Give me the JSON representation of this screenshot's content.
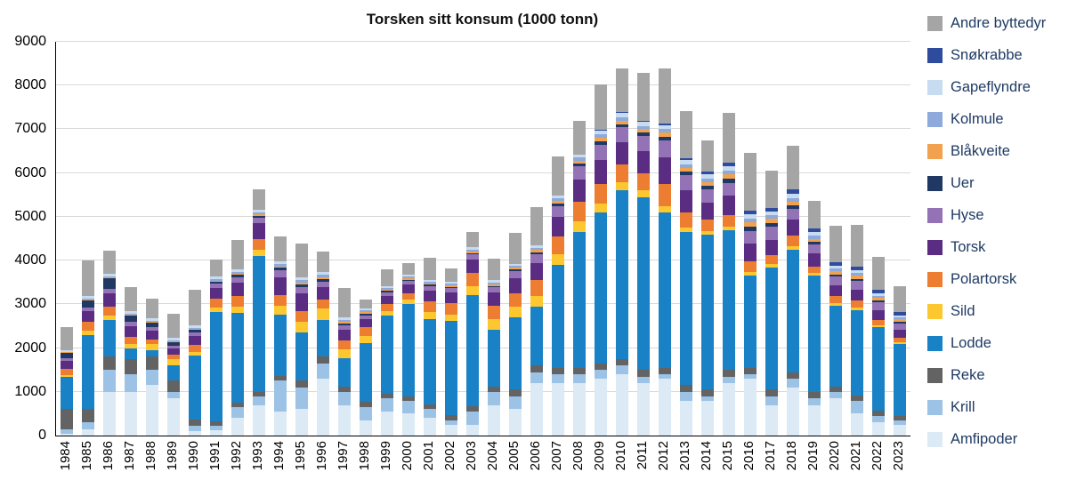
{
  "title": "Torsken sitt konsum (1000 tonn)",
  "chart_data": {
    "type": "bar",
    "stacked": true,
    "title": "Torsken sitt konsum (1000 tonn)",
    "xlabel": "",
    "ylabel": "",
    "ylim": [
      0,
      9000
    ],
    "ytick_interval": 1000,
    "grid": true,
    "legend_position": "right",
    "legend_order": "top-of-stack-first",
    "categories": [
      "1984",
      "1985",
      "1986",
      "1987",
      "1988",
      "1989",
      "1990",
      "1991",
      "1992",
      "1993",
      "1994",
      "1995",
      "1996",
      "1997",
      "1998",
      "1999",
      "2000",
      "2001",
      "2002",
      "2003",
      "2004",
      "2005",
      "2006",
      "2007",
      "2008",
      "2009",
      "2010",
      "2011",
      "2012",
      "2013",
      "2014",
      "2015",
      "2016",
      "2017",
      "2018",
      "2019",
      "2020",
      "2021",
      "2022",
      "2023"
    ],
    "series": [
      {
        "name": "Amfipoder",
        "color": "#dbeaf5",
        "values": [
          50,
          150,
          1000,
          1000,
          1150,
          850,
          100,
          120,
          400,
          700,
          550,
          600,
          1300,
          700,
          350,
          550,
          500,
          400,
          250,
          250,
          700,
          600,
          1200,
          1200,
          1200,
          1300,
          1400,
          1200,
          1300,
          800,
          800,
          1200,
          1300,
          700,
          1100,
          700,
          850,
          500,
          300,
          250
        ]
      },
      {
        "name": "Krill",
        "color": "#9cc2e5",
        "values": [
          100,
          150,
          500,
          400,
          350,
          150,
          120,
          100,
          250,
          200,
          700,
          500,
          350,
          300,
          300,
          300,
          300,
          200,
          100,
          300,
          300,
          300,
          250,
          200,
          200,
          200,
          200,
          150,
          100,
          200,
          100,
          150,
          100,
          200,
          200,
          150,
          150,
          300,
          150,
          100
        ]
      },
      {
        "name": "Reke",
        "color": "#636363",
        "values": [
          450,
          300,
          300,
          350,
          300,
          250,
          150,
          100,
          100,
          100,
          120,
          150,
          150,
          120,
          120,
          100,
          100,
          120,
          120,
          120,
          120,
          150,
          150,
          150,
          150,
          150,
          150,
          150,
          150,
          150,
          150,
          150,
          150,
          150,
          150,
          150,
          120,
          120,
          120,
          100
        ]
      },
      {
        "name": "Lodde",
        "color": "#1981c5",
        "values": [
          750,
          1700,
          850,
          250,
          150,
          350,
          1450,
          2500,
          2050,
          3100,
          1400,
          1100,
          850,
          650,
          1350,
          1800,
          2100,
          1950,
          2150,
          2550,
          1300,
          1650,
          1350,
          2350,
          3100,
          3450,
          3850,
          3950,
          3550,
          3500,
          3550,
          3200,
          2100,
          2800,
          2800,
          2650,
          1850,
          1950,
          1900,
          1650
        ]
      },
      {
        "name": "Sild",
        "color": "#fdc82f",
        "values": [
          30,
          100,
          100,
          100,
          150,
          150,
          100,
          100,
          150,
          150,
          200,
          250,
          250,
          200,
          150,
          100,
          100,
          150,
          150,
          200,
          250,
          250,
          250,
          250,
          250,
          200,
          200,
          150,
          150,
          100,
          80,
          80,
          80,
          80,
          80,
          60,
          60,
          60,
          50,
          40
        ]
      },
      {
        "name": "Polartorsk",
        "color": "#ed7d31",
        "values": [
          150,
          200,
          200,
          150,
          100,
          100,
          150,
          200,
          250,
          250,
          250,
          250,
          200,
          200,
          200,
          150,
          150,
          250,
          250,
          300,
          300,
          300,
          350,
          400,
          450,
          450,
          400,
          400,
          500,
          350,
          250,
          250,
          250,
          200,
          250,
          150,
          150,
          150,
          120,
          100
        ]
      },
      {
        "name": "Torsk",
        "color": "#5b2d82",
        "values": [
          180,
          250,
          300,
          250,
          200,
          150,
          200,
          250,
          300,
          350,
          400,
          400,
          300,
          250,
          200,
          200,
          200,
          250,
          250,
          300,
          300,
          350,
          400,
          450,
          500,
          550,
          500,
          500,
          600,
          500,
          400,
          450,
          400,
          350,
          350,
          300,
          250,
          250,
          220,
          180
        ]
      },
      {
        "name": "Hyse",
        "color": "#9373b5",
        "values": [
          60,
          80,
          100,
          100,
          80,
          60,
          80,
          100,
          120,
          120,
          150,
          150,
          120,
          100,
          80,
          80,
          80,
          100,
          100,
          120,
          120,
          150,
          200,
          250,
          300,
          350,
          350,
          350,
          400,
          350,
          300,
          300,
          300,
          300,
          250,
          200,
          200,
          200,
          180,
          150
        ]
      },
      {
        "name": "Uer",
        "color": "#1f3864",
        "values": [
          120,
          150,
          250,
          150,
          100,
          80,
          60,
          50,
          50,
          50,
          60,
          60,
          50,
          40,
          40,
          30,
          30,
          30,
          30,
          30,
          30,
          40,
          40,
          50,
          60,
          70,
          70,
          70,
          80,
          80,
          80,
          90,
          90,
          80,
          80,
          60,
          50,
          50,
          40,
          40
        ]
      },
      {
        "name": "Blåkveite",
        "color": "#f2a24e",
        "values": [
          10,
          20,
          20,
          20,
          20,
          20,
          20,
          20,
          30,
          30,
          40,
          40,
          40,
          40,
          30,
          30,
          30,
          30,
          30,
          40,
          40,
          40,
          50,
          60,
          70,
          80,
          80,
          80,
          90,
          90,
          90,
          100,
          100,
          90,
          90,
          80,
          70,
          70,
          60,
          50
        ]
      },
      {
        "name": "Kolmule",
        "color": "#8ea9db",
        "values": [
          10,
          20,
          20,
          20,
          20,
          20,
          30,
          40,
          40,
          50,
          50,
          60,
          60,
          50,
          40,
          40,
          40,
          40,
          40,
          40,
          40,
          50,
          50,
          60,
          70,
          80,
          80,
          80,
          80,
          80,
          80,
          90,
          90,
          80,
          80,
          70,
          60,
          60,
          50,
          40
        ]
      },
      {
        "name": "Gapeflyndre",
        "color": "#c7dcf0",
        "values": [
          40,
          60,
          60,
          60,
          60,
          50,
          50,
          50,
          60,
          60,
          60,
          60,
          60,
          50,
          40,
          40,
          40,
          40,
          40,
          50,
          50,
          50,
          60,
          70,
          80,
          90,
          90,
          90,
          90,
          90,
          90,
          100,
          100,
          90,
          90,
          80,
          70,
          70,
          60,
          50
        ]
      },
      {
        "name": "Snøkrabbe",
        "color": "#2e4b9e",
        "values": [
          0,
          0,
          0,
          0,
          0,
          0,
          0,
          0,
          0,
          0,
          0,
          0,
          0,
          0,
          0,
          0,
          0,
          0,
          0,
          0,
          0,
          0,
          0,
          0,
          0,
          10,
          20,
          30,
          40,
          50,
          60,
          70,
          80,
          80,
          100,
          90,
          80,
          90,
          80,
          70
        ]
      },
      {
        "name": "Andre byttedyr",
        "color": "#a5a5a5",
        "values": [
          530,
          820,
          530,
          550,
          450,
          550,
          820,
          400,
          670,
          470,
          580,
          760,
          470,
          680,
          200,
          370,
          280,
          510,
          310,
          360,
          500,
          710,
          880,
          890,
          770,
          1040,
          1010,
          1080,
          1270,
          1080,
          720,
          1140,
          1320,
          850,
          1000,
          620,
          830,
          950,
          760,
          590
        ]
      }
    ]
  }
}
